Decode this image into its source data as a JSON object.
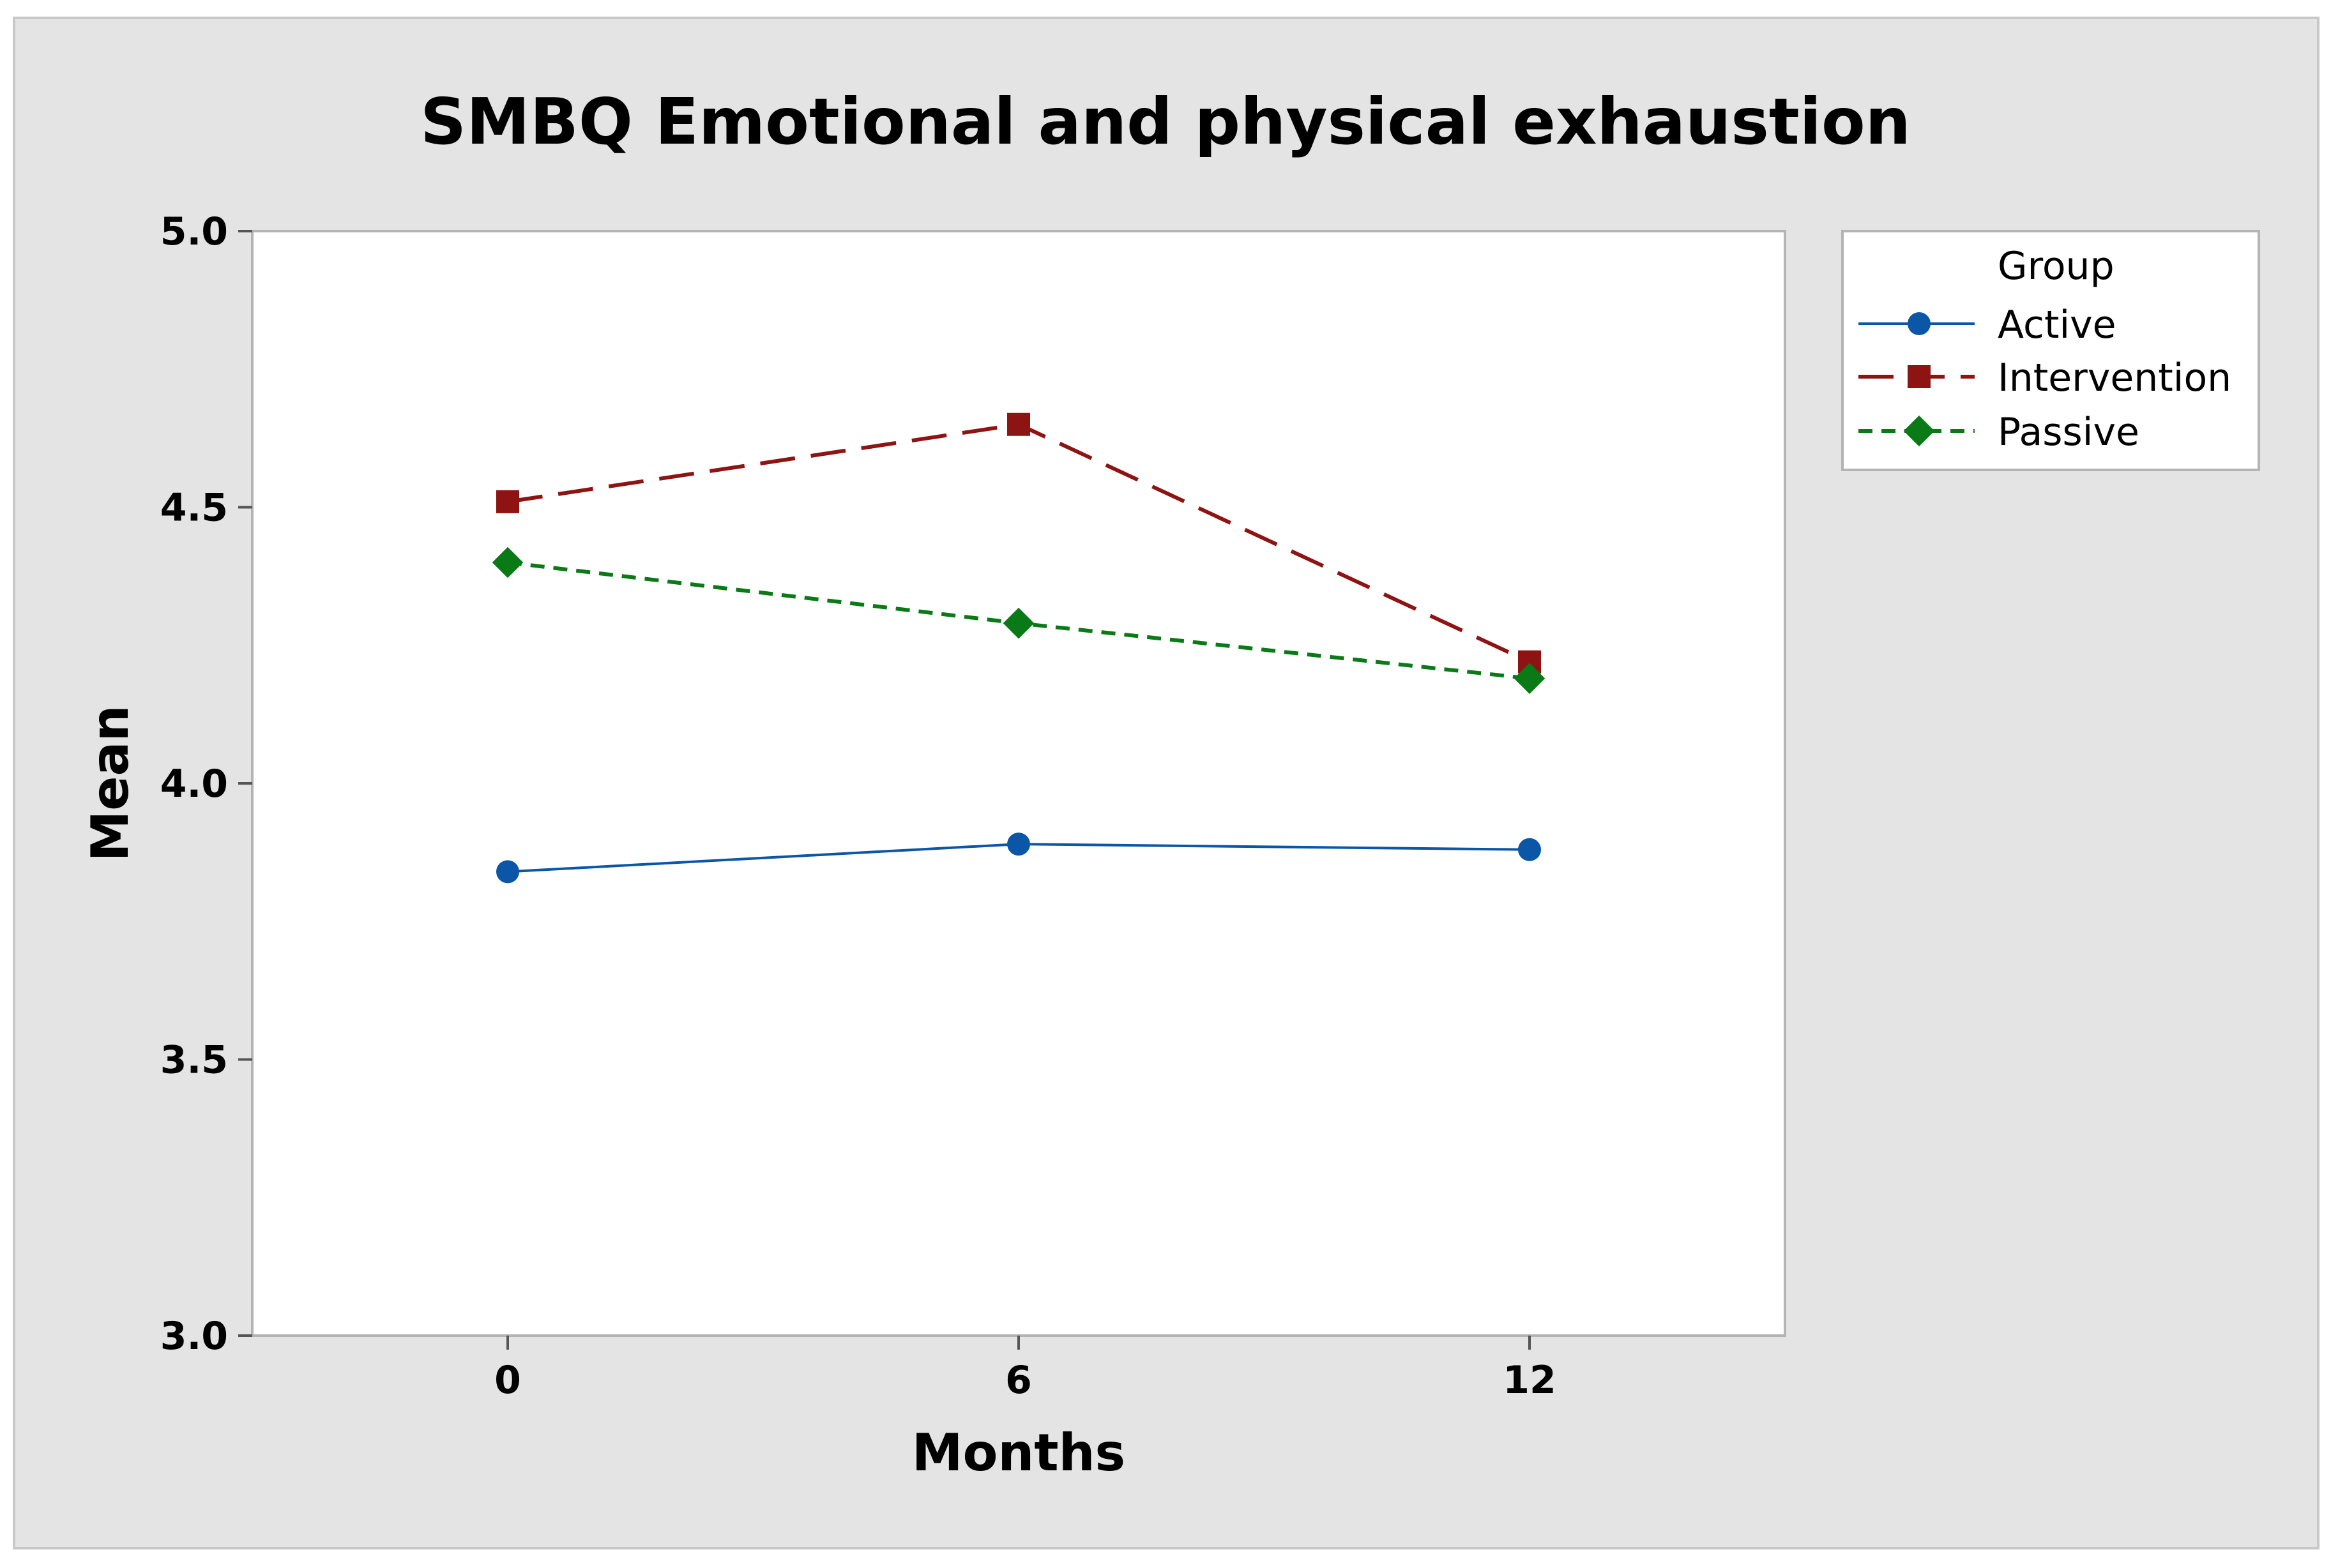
{
  "chart_data": {
    "type": "line",
    "title": "SMBQ Emotional and physical exhaustion",
    "xlabel": "Months",
    "ylabel": "Mean",
    "x": [
      0,
      6,
      12
    ],
    "x_ticks": [
      "0",
      "6",
      "12"
    ],
    "xlim": [
      -3,
      15
    ],
    "ylim": [
      3.0,
      5.0
    ],
    "y_ticks": [
      "3.0",
      "3.5",
      "4.0",
      "4.5",
      "5.0"
    ],
    "grid": false,
    "legend": {
      "title": "Group",
      "placement": "right"
    },
    "series": [
      {
        "name": "Active",
        "values": [
          3.84,
          3.89,
          3.88
        ],
        "color": "#0b56a6",
        "marker": "circle",
        "line_style": "solid"
      },
      {
        "name": "Intervention",
        "values": [
          4.51,
          4.65,
          4.22
        ],
        "color": "#8e1414",
        "marker": "square",
        "line_style": "long-dash"
      },
      {
        "name": "Passive",
        "values": [
          4.4,
          4.29,
          4.19
        ],
        "color": "#0a7a17",
        "marker": "diamond",
        "line_style": "short-dash"
      }
    ],
    "colors": {
      "outer_background": "#e4e4e4",
      "plot_background": "#ffffff",
      "border": "#b4b4b4"
    }
  }
}
